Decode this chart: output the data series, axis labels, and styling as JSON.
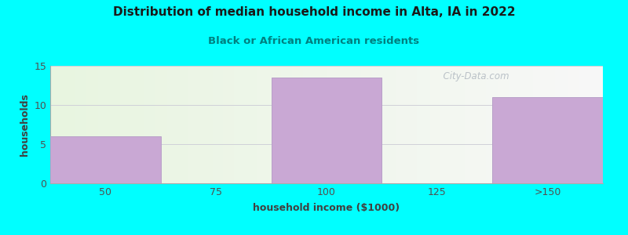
{
  "title": "Distribution of median household income in Alta, IA in 2022",
  "subtitle": "Black or African American residents",
  "xlabel": "household income ($1000)",
  "ylabel": "households",
  "categories": [
    "50",
    "75",
    "100",
    "125",
    ">150"
  ],
  "values": [
    6,
    0,
    13.5,
    0,
    11
  ],
  "bar_color": "#c9a8d4",
  "bar_edge_color": "#b8a0c8",
  "background_color": "#00FFFF",
  "plot_bg_color_left": "#e8f5e0",
  "plot_bg_color_right": "#f8f8f8",
  "title_color": "#1a1a1a",
  "subtitle_color": "#008080",
  "axis_label_color": "#404040",
  "tick_color": "#505050",
  "grid_color": "#d0d0d8",
  "ylim": [
    0,
    15
  ],
  "yticks": [
    0,
    5,
    10,
    15
  ],
  "title_fontsize": 11,
  "subtitle_fontsize": 9.5,
  "label_fontsize": 9,
  "tick_fontsize": 9,
  "watermark_text": "  City-Data.com",
  "watermark_color": "#b0b8c0"
}
